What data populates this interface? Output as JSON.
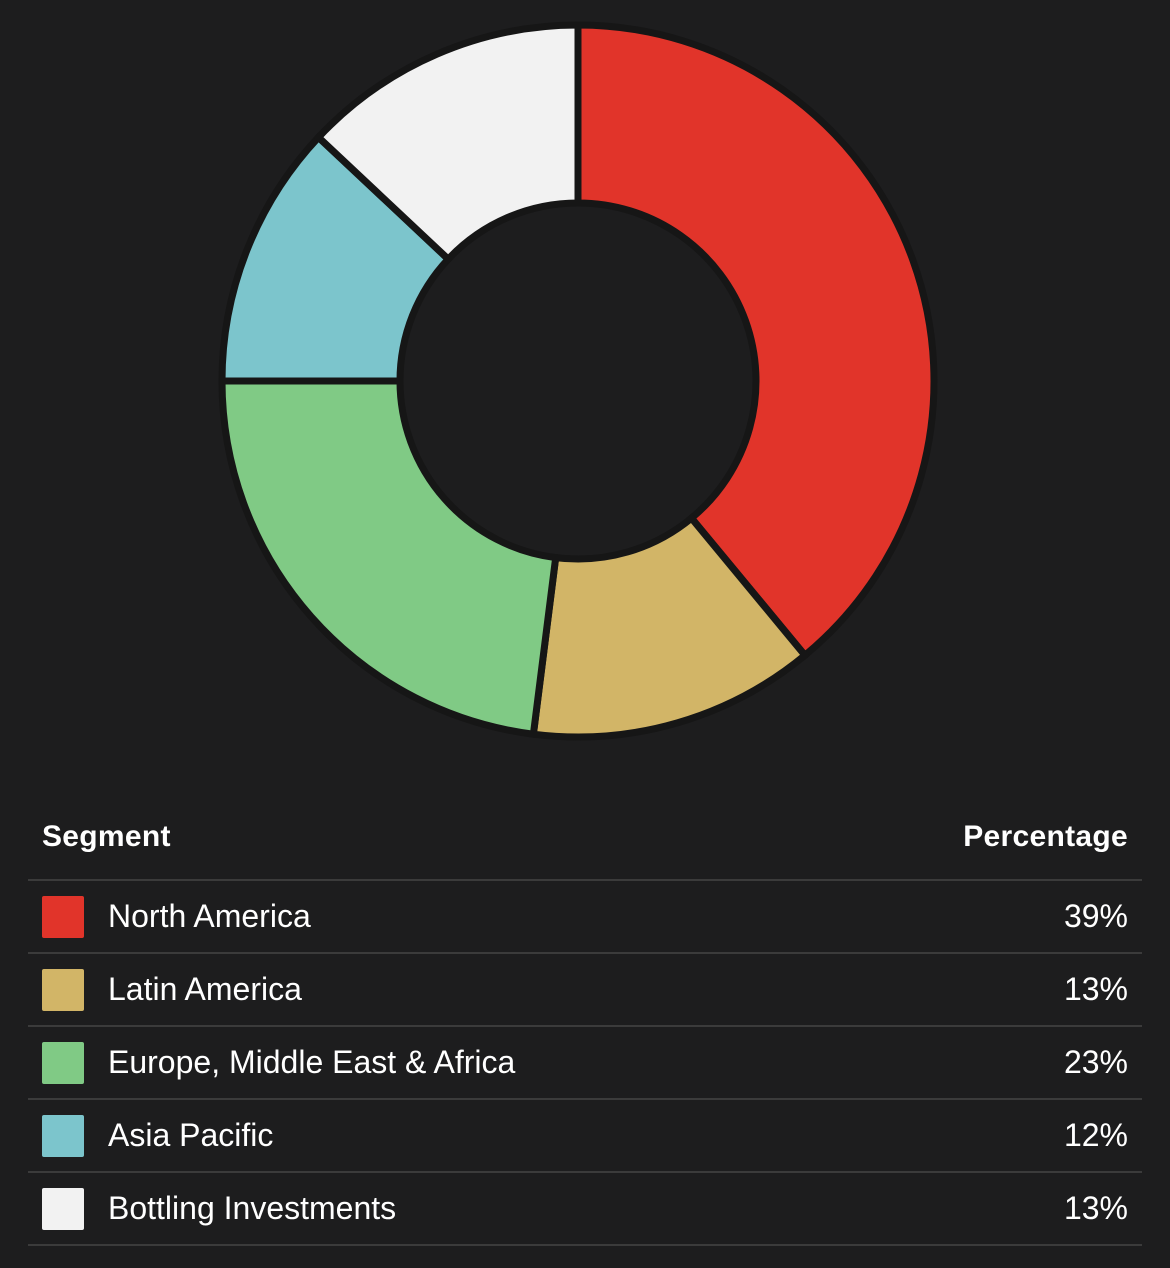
{
  "chart_data": {
    "type": "pie",
    "variant": "donut",
    "title": "",
    "categories": [
      "North America",
      "Latin America",
      "Europe, Middle East & Africa",
      "Asia Pacific",
      "Bottling Investments"
    ],
    "values": [
      39,
      13,
      23,
      12,
      13
    ],
    "unit": "%",
    "colors": [
      "#e1342a",
      "#d2b567",
      "#80ca85",
      "#7cc5cc",
      "#f2f2f2"
    ],
    "start_angle_deg": 0,
    "direction": "clockwise",
    "inner_radius_ratio": 0.5,
    "grid": false,
    "legend_position": "table-below"
  },
  "table": {
    "headers": {
      "segment": "Segment",
      "percentage": "Percentage"
    }
  },
  "colors": {
    "background": "#1d1d1e",
    "divider": "#3b3b3b",
    "slice_gap": "#161616",
    "text": "#ffffff"
  }
}
